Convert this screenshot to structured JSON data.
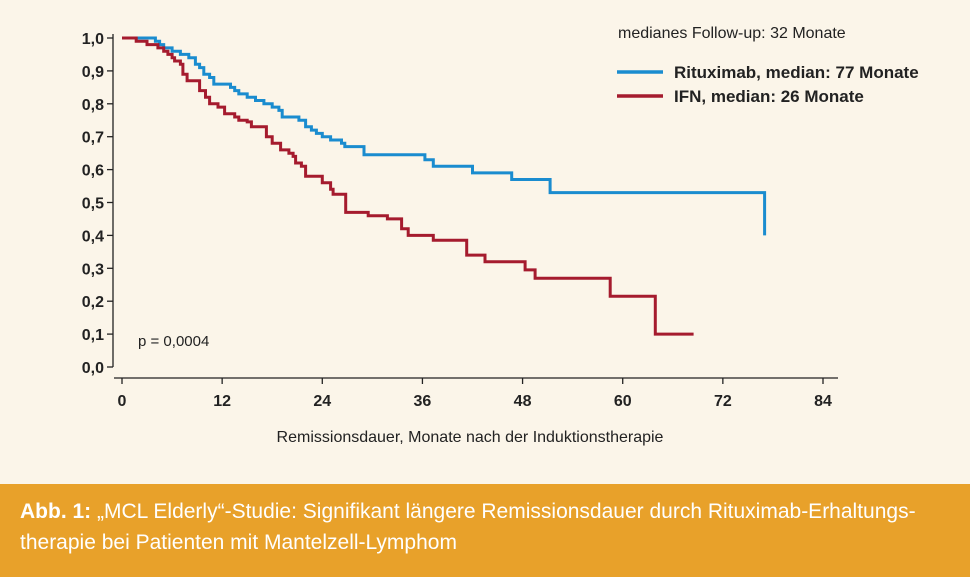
{
  "chart_data": {
    "type": "line",
    "step": true,
    "xlabel": "Remissionsdauer, Monate nach der Induktionstherapie",
    "ylabel": "",
    "xlim": [
      0,
      84
    ],
    "ylim": [
      0,
      1
    ],
    "x_ticks": [
      0,
      12,
      24,
      36,
      48,
      60,
      72,
      84
    ],
    "x_tick_labels": [
      "0",
      "12",
      "24",
      "36",
      "48",
      "60",
      "72",
      "84"
    ],
    "y_ticks": [
      0,
      0.1,
      0.2,
      0.3,
      0.4,
      0.5,
      0.6,
      0.7,
      0.8,
      0.9,
      1.0
    ],
    "y_tick_labels": [
      "0,0",
      "0,1",
      "0,2",
      "0,3",
      "0,4",
      "0,5",
      "0,6",
      "0,7",
      "0,8",
      "0,9",
      "1,0"
    ],
    "grid": false,
    "legend_position": "top-right",
    "legend_header": "medianes Follow-up: 32 Monate",
    "annotation": "p = 0,0004",
    "series": [
      {
        "name": "Rituximab, median: 77 Monate",
        "color": "#1a8ccf",
        "points": [
          [
            0,
            1.0
          ],
          [
            3.3,
            1.0
          ],
          [
            4,
            0.99
          ],
          [
            4.5,
            0.98
          ],
          [
            5,
            0.97
          ],
          [
            6,
            0.96
          ],
          [
            7,
            0.95
          ],
          [
            8,
            0.94
          ],
          [
            8.8,
            0.92
          ],
          [
            9.3,
            0.91
          ],
          [
            9.8,
            0.89
          ],
          [
            10.5,
            0.88
          ],
          [
            11,
            0.86
          ],
          [
            12.5,
            0.86
          ],
          [
            13,
            0.85
          ],
          [
            13.5,
            0.84
          ],
          [
            14,
            0.83
          ],
          [
            15,
            0.82
          ],
          [
            16,
            0.81
          ],
          [
            17,
            0.8
          ],
          [
            18,
            0.79
          ],
          [
            18.8,
            0.78
          ],
          [
            19.2,
            0.76
          ],
          [
            20.5,
            0.76
          ],
          [
            21.2,
            0.75
          ],
          [
            22,
            0.73
          ],
          [
            22.7,
            0.72
          ],
          [
            23.3,
            0.71
          ],
          [
            24,
            0.7
          ],
          [
            25,
            0.69
          ],
          [
            26.3,
            0.68
          ],
          [
            26.7,
            0.67
          ],
          [
            28.5,
            0.67
          ],
          [
            29,
            0.645
          ],
          [
            36,
            0.645
          ],
          [
            36.3,
            0.63
          ],
          [
            37.3,
            0.61
          ],
          [
            41.8,
            0.61
          ],
          [
            42,
            0.59
          ],
          [
            46.5,
            0.59
          ],
          [
            46.7,
            0.57
          ],
          [
            51,
            0.57
          ],
          [
            51.3,
            0.53
          ],
          [
            77,
            0.53
          ],
          [
            77,
            0.4
          ]
        ]
      },
      {
        "name": "IFN, median: 26 Monate",
        "color": "#a51b2e",
        "points": [
          [
            0,
            1.0
          ],
          [
            1.5,
            1.0
          ],
          [
            1.7,
            0.99
          ],
          [
            2.5,
            0.99
          ],
          [
            3,
            0.98
          ],
          [
            4,
            0.98
          ],
          [
            4.3,
            0.97
          ],
          [
            5,
            0.96
          ],
          [
            5.5,
            0.95
          ],
          [
            6,
            0.94
          ],
          [
            6.3,
            0.93
          ],
          [
            7,
            0.92
          ],
          [
            7.3,
            0.89
          ],
          [
            7.8,
            0.87
          ],
          [
            8.8,
            0.87
          ],
          [
            9.3,
            0.84
          ],
          [
            10,
            0.82
          ],
          [
            10.5,
            0.8
          ],
          [
            11.5,
            0.79
          ],
          [
            12.3,
            0.77
          ],
          [
            13.5,
            0.76
          ],
          [
            14,
            0.75
          ],
          [
            15,
            0.745
          ],
          [
            15.5,
            0.73
          ],
          [
            16.8,
            0.73
          ],
          [
            17.3,
            0.7
          ],
          [
            18,
            0.68
          ],
          [
            19,
            0.66
          ],
          [
            20,
            0.65
          ],
          [
            20.5,
            0.64
          ],
          [
            20.8,
            0.62
          ],
          [
            21.5,
            0.61
          ],
          [
            22,
            0.58
          ],
          [
            23.5,
            0.58
          ],
          [
            24,
            0.56
          ],
          [
            25,
            0.54
          ],
          [
            25.3,
            0.525
          ],
          [
            26.5,
            0.525
          ],
          [
            26.8,
            0.47
          ],
          [
            29,
            0.47
          ],
          [
            29.5,
            0.46
          ],
          [
            31.5,
            0.46
          ],
          [
            31.8,
            0.45
          ],
          [
            33.3,
            0.45
          ],
          [
            33.5,
            0.42
          ],
          [
            34,
            0.42
          ],
          [
            34.3,
            0.4
          ],
          [
            37,
            0.4
          ],
          [
            37.3,
            0.385
          ],
          [
            39.5,
            0.385
          ],
          [
            41.3,
            0.34
          ],
          [
            43.3,
            0.34
          ],
          [
            43.5,
            0.32
          ],
          [
            48,
            0.32
          ],
          [
            48.3,
            0.295
          ],
          [
            49.3,
            0.295
          ],
          [
            49.5,
            0.27
          ],
          [
            58.3,
            0.27
          ],
          [
            58.5,
            0.215
          ],
          [
            63.8,
            0.215
          ],
          [
            63.9,
            0.1
          ],
          [
            68.5,
            0.1
          ]
        ]
      }
    ]
  },
  "caption": {
    "bold_label": "Abb. 1:",
    "text": " „MCL Elderly“-Studie: Signifikant längere Remissionsdauer durch Rituximab-Erhaltungs- therapie bei Patienten mit Mantelzell-Lymphom",
    "background_color": "#e8a12a"
  }
}
